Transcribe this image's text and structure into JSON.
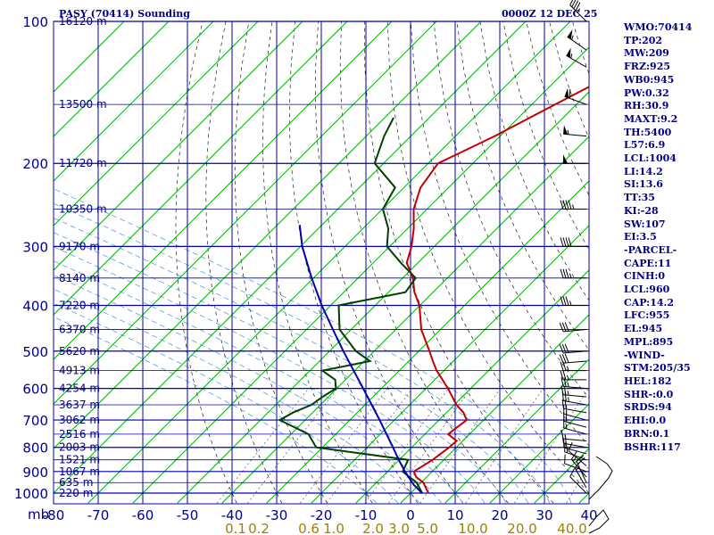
{
  "title_left": "PASY (70414) Sounding",
  "title_right": "0000Z 12 DEC 25",
  "indices": [
    "WMO:70414",
    "TP:202",
    "MW:209",
    "FRZ:925",
    "WB0:945",
    "PW:0.32",
    "RH:30.9",
    "MAXT:9.2",
    "TH:5400",
    "L57:6.9",
    "LCL:1004",
    "LI:14.2",
    "SI:13.6",
    "TT:35",
    "KI:-28",
    "SW:107",
    "EI:3.5",
    "-PARCEL-",
    "CAPE:11",
    "CINH:0",
    "LCL:960",
    "CAP:14.2",
    "LFC:955",
    "EL:945",
    "MPL:895",
    "-WIND-",
    "STM:205/35",
    "HEL:182",
    "SHR-:0.0",
    "SRDS:94",
    "EHI:0.0",
    "BRN:0.1",
    "BSHR:117"
  ],
  "chart_data": {
    "type": "line",
    "subtype": "skew-t log-p sounding",
    "y_unit_label": "mb",
    "pressure_levels": [
      100,
      200,
      300,
      400,
      500,
      600,
      700,
      800,
      900,
      1000
    ],
    "pressure_range": [
      1050,
      100
    ],
    "temp_ticks": [
      -80,
      -70,
      -60,
      -50,
      -40,
      -30,
      -20,
      -10,
      0,
      10,
      20,
      30,
      40
    ],
    "temp_tick_labels": [
      "-80",
      "-70",
      "-60",
      "-50",
      "-40",
      "-30",
      "-20",
      "-10",
      "0",
      "10",
      "20",
      "30",
      "40"
    ],
    "temp_range": [
      -80,
      40
    ],
    "mixing_ratio_labels": [
      "0.1",
      "0.2",
      "0.6",
      "1.0",
      "2.0",
      "3.0",
      "5.0",
      "10.0",
      "20.0",
      "40.0"
    ],
    "height_labels": [
      {
        "p": 100,
        "text": "16120 m"
      },
      {
        "p": 150,
        "text": "13500 m"
      },
      {
        "p": 200,
        "text": "11720 m"
      },
      {
        "p": 250,
        "text": "10350 m"
      },
      {
        "p": 300,
        "text": "9170 m"
      },
      {
        "p": 350,
        "text": "8140 m"
      },
      {
        "p": 400,
        "text": "7220 m"
      },
      {
        "p": 450,
        "text": "6370 m"
      },
      {
        "p": 500,
        "text": "5620 m"
      },
      {
        "p": 550,
        "text": "4913 m"
      },
      {
        "p": 600,
        "text": "4254 m"
      },
      {
        "p": 650,
        "text": "3637 m"
      },
      {
        "p": 700,
        "text": "3062 m"
      },
      {
        "p": 750,
        "text": "2516 m"
      },
      {
        "p": 800,
        "text": "2003 m"
      },
      {
        "p": 850,
        "text": "1521 m"
      },
      {
        "p": 900,
        "text": "1067 m"
      },
      {
        "p": 950,
        "text": "635 m"
      },
      {
        "p": 1000,
        "text": "220 m"
      }
    ],
    "series": [
      {
        "color": "#c00000",
        "points": [
          [
            1000,
            4.0
          ],
          [
            950,
            0.5
          ],
          [
            925,
            -2.3
          ],
          [
            900,
            -4.1
          ],
          [
            850,
            -2.5
          ],
          [
            800,
            -1.6
          ],
          [
            775,
            -1.4
          ],
          [
            750,
            -4.8
          ],
          [
            700,
            -3.8
          ],
          [
            675,
            -6.2
          ],
          [
            650,
            -9.5
          ],
          [
            600,
            -15.1
          ],
          [
            550,
            -21.6
          ],
          [
            525,
            -24.6
          ],
          [
            500,
            -27.6
          ],
          [
            450,
            -34.3
          ],
          [
            400,
            -40.1
          ],
          [
            375,
            -44.2
          ],
          [
            350,
            -47.7
          ],
          [
            325,
            -52.5
          ],
          [
            300,
            -55.1
          ],
          [
            275,
            -58.6
          ],
          [
            250,
            -63.0
          ],
          [
            225,
            -66.3
          ],
          [
            200,
            -67.8
          ],
          [
            175,
            -61.2
          ],
          [
            150,
            -54.8
          ],
          [
            125,
            -47.0
          ],
          [
            110,
            -44.5
          ],
          [
            100,
            -45.6
          ]
        ]
      },
      {
        "color": "#004000",
        "points": [
          [
            1000,
            2.6
          ],
          [
            950,
            -1.0
          ],
          [
            925,
            -3.8
          ],
          [
            900,
            -6.6
          ],
          [
            850,
            -8.0
          ],
          [
            800,
            -31.4
          ],
          [
            750,
            -36.1
          ],
          [
            700,
            -45.7
          ],
          [
            675,
            -44.4
          ],
          [
            650,
            -42.0
          ],
          [
            625,
            -41.3
          ],
          [
            600,
            -40.2
          ],
          [
            575,
            -42.3
          ],
          [
            550,
            -47.2
          ],
          [
            525,
            -38.7
          ],
          [
            500,
            -44.1
          ],
          [
            450,
            -52.6
          ],
          [
            400,
            -58.2
          ],
          [
            375,
            -46.2
          ],
          [
            350,
            -47.1
          ],
          [
            325,
            -53.8
          ],
          [
            300,
            -60.6
          ],
          [
            275,
            -64.3
          ],
          [
            250,
            -69.9
          ],
          [
            225,
            -72.0
          ],
          [
            200,
            -82.0
          ],
          [
            175,
            -86.0
          ],
          [
            160,
            -88.0
          ]
        ]
      },
      {
        "color": "#0000b0",
        "points": [
          [
            1000,
            2.6
          ],
          [
            960,
            -1.2
          ],
          [
            900,
            -6.1
          ],
          [
            850,
            -10.1
          ],
          [
            800,
            -14.2
          ],
          [
            750,
            -18.6
          ],
          [
            700,
            -23.3
          ],
          [
            650,
            -28.5
          ],
          [
            600,
            -34.1
          ],
          [
            550,
            -40.2
          ],
          [
            500,
            -46.9
          ],
          [
            450,
            -54.1
          ],
          [
            400,
            -62.0
          ],
          [
            350,
            -70.4
          ],
          [
            300,
            -79.6
          ],
          [
            270,
            -85.0
          ]
        ]
      }
    ],
    "wind_barbs": [
      {
        "p": 1000,
        "dir": 315,
        "spd": 10
      },
      {
        "p": 975,
        "dir": 330,
        "spd": 15
      },
      {
        "p": 950,
        "dir": 335,
        "spd": 20
      },
      {
        "p": 925,
        "dir": 320,
        "spd": 15
      },
      {
        "p": 900,
        "dir": 290,
        "spd": 10
      },
      {
        "p": 875,
        "dir": 310,
        "spd": 10
      },
      {
        "p": 850,
        "dir": 290,
        "spd": 15
      },
      {
        "p": 825,
        "dir": 285,
        "spd": 15
      },
      {
        "p": 800,
        "dir": 280,
        "spd": 20
      },
      {
        "p": 775,
        "dir": 275,
        "spd": 15
      },
      {
        "p": 750,
        "dir": 285,
        "spd": 15
      },
      {
        "p": 725,
        "dir": 285,
        "spd": 20
      },
      {
        "p": 700,
        "dir": 285,
        "spd": 20
      },
      {
        "p": 675,
        "dir": 280,
        "spd": 20
      },
      {
        "p": 650,
        "dir": 280,
        "spd": 25
      },
      {
        "p": 625,
        "dir": 275,
        "spd": 25
      },
      {
        "p": 600,
        "dir": 275,
        "spd": 25
      },
      {
        "p": 575,
        "dir": 270,
        "spd": 25
      },
      {
        "p": 550,
        "dir": 270,
        "spd": 25
      },
      {
        "p": 525,
        "dir": 265,
        "spd": 30
      },
      {
        "p": 500,
        "dir": 265,
        "spd": 30
      },
      {
        "p": 450,
        "dir": 265,
        "spd": 30
      },
      {
        "p": 400,
        "dir": 270,
        "spd": 35
      },
      {
        "p": 350,
        "dir": 270,
        "spd": 35
      },
      {
        "p": 300,
        "dir": 270,
        "spd": 40
      },
      {
        "p": 250,
        "dir": 270,
        "spd": 45
      },
      {
        "p": 200,
        "dir": 270,
        "spd": 50
      },
      {
        "p": 175,
        "dir": 275,
        "spd": 55
      },
      {
        "p": 150,
        "dir": 290,
        "spd": 60
      },
      {
        "p": 125,
        "dir": 300,
        "spd": 55
      },
      {
        "p": 115,
        "dir": 305,
        "spd": 55
      },
      {
        "p": 100,
        "dir": 315,
        "spd": 45
      }
    ],
    "grid": true,
    "legend": "none"
  }
}
